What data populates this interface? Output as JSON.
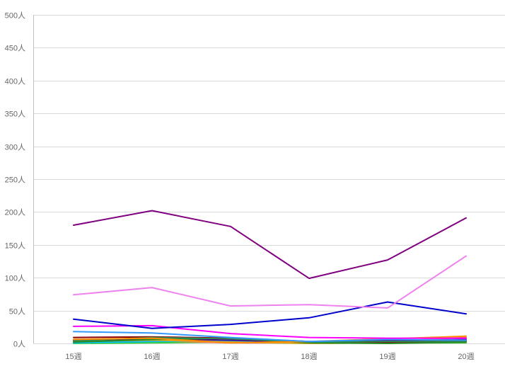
{
  "chart_data": {
    "type": "line",
    "title": "",
    "xlabel": "",
    "ylabel": "",
    "categories": [
      "15週",
      "16週",
      "17週",
      "18週",
      "19週",
      "20週"
    ],
    "y_unit_suffix": "人",
    "ylim": [
      0,
      500
    ],
    "y_ticks": [
      0,
      50,
      100,
      150,
      200,
      250,
      300,
      350,
      400,
      450,
      500
    ],
    "y_tick_labels": [
      "0人",
      "50人",
      "100人",
      "150人",
      "200人",
      "250人",
      "300人",
      "350人",
      "400人",
      "450人",
      "500人"
    ],
    "grid": true,
    "legend": "none",
    "series": [
      {
        "color": "#800080",
        "values": [
          180,
          202,
          178,
          99,
          127,
          191
        ]
      },
      {
        "color": "#ee82ee",
        "values": [
          74,
          85,
          57,
          59,
          54,
          133
        ]
      },
      {
        "color": "#0000cd",
        "values": [
          37,
          23,
          29,
          39,
          63,
          45
        ]
      },
      {
        "color": "#ff00ff",
        "values": [
          26,
          27,
          15,
          9,
          8,
          8
        ]
      },
      {
        "color": "#3399ff",
        "values": [
          18,
          16,
          9,
          3,
          6,
          5
        ]
      },
      {
        "color": "#ff8c00",
        "values": [
          6,
          8,
          1,
          3,
          7,
          11
        ]
      },
      {
        "color": "#2e8b57",
        "values": [
          4,
          9,
          7,
          2,
          3,
          3
        ]
      },
      {
        "color": "#8b0000",
        "values": [
          9,
          10,
          8,
          3,
          2,
          4
        ]
      },
      {
        "color": "#228b22",
        "values": [
          2,
          6,
          8,
          1,
          0,
          2
        ]
      },
      {
        "color": "#daa520",
        "values": [
          3,
          5,
          2,
          0,
          1,
          2
        ]
      },
      {
        "color": "#4b0082",
        "values": [
          5,
          7,
          5,
          2,
          4,
          6
        ]
      },
      {
        "color": "#00bfff",
        "values": [
          1,
          3,
          4,
          2,
          5,
          3
        ]
      },
      {
        "color": "#ff6347",
        "values": [
          2,
          4,
          1,
          1,
          3,
          9
        ]
      },
      {
        "color": "#32cd32",
        "values": [
          0,
          1,
          2,
          0,
          1,
          1
        ]
      }
    ]
  }
}
